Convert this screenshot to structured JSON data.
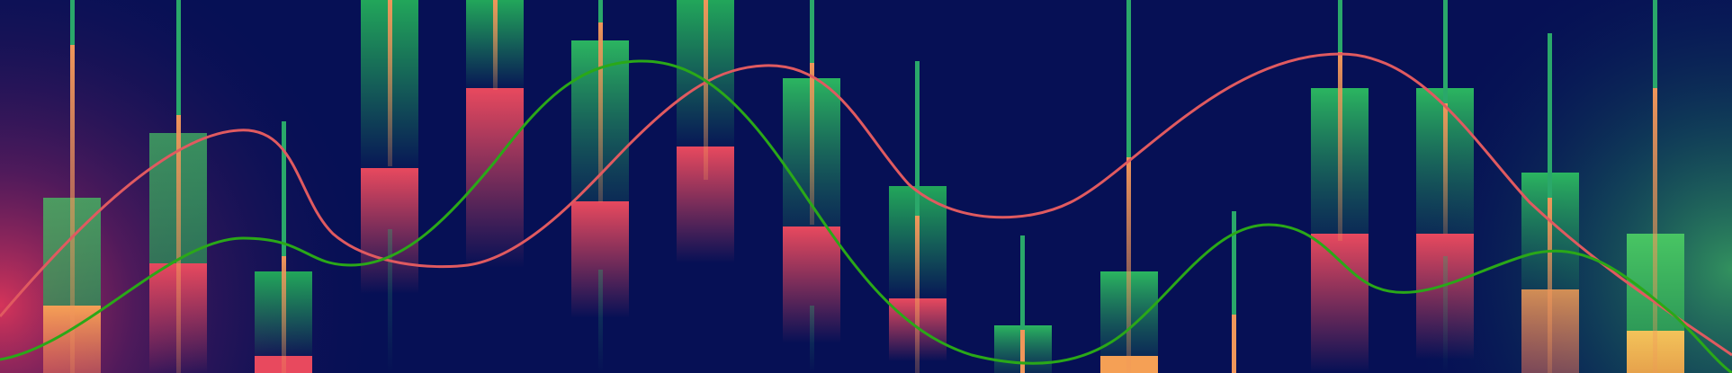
{
  "banner": {
    "background": "#061055",
    "glow_left": "#e0365a",
    "glow_right": "#2a8a5a",
    "candle_colors": {
      "green": "#22a65a",
      "green_light": "#45c060",
      "red": "#e8495e",
      "orange": "#f5a055",
      "wick_green": "#2aa86a",
      "wick_orange": "#f0965a"
    },
    "line_colors": {
      "red_curve": "#e05a60",
      "green_curve": "#2aa818"
    },
    "candles": [
      {
        "id": "c01",
        "upper": "green",
        "lower": "orange",
        "wick": "green"
      },
      {
        "id": "c02",
        "upper": "green",
        "lower": "red",
        "wick": "orange"
      },
      {
        "id": "c03",
        "upper": "green",
        "lower": "red",
        "wick": "green"
      },
      {
        "id": "c04",
        "upper": "green",
        "lower": "red",
        "wick": "orange"
      },
      {
        "id": "c05",
        "upper": "green",
        "lower": "red",
        "wick": "orange"
      },
      {
        "id": "c06",
        "upper": "green",
        "lower": "red",
        "wick": "orange"
      },
      {
        "id": "c07",
        "upper": "green",
        "lower": "red",
        "wick": "orange"
      },
      {
        "id": "c08",
        "upper": "green",
        "lower": "red",
        "wick": "orange"
      },
      {
        "id": "c09",
        "upper": "green",
        "lower": "red",
        "wick": "green"
      },
      {
        "id": "c10",
        "upper": "green",
        "lower": "orange",
        "wick": "green"
      },
      {
        "id": "c11",
        "upper": "green",
        "lower": "orange",
        "wick": "green"
      },
      {
        "id": "c12",
        "upper": "none",
        "lower": "orange",
        "wick": "green"
      },
      {
        "id": "c13",
        "upper": "green",
        "lower": "red",
        "wick": "orange"
      },
      {
        "id": "c14",
        "upper": "green",
        "lower": "red",
        "wick": "orange"
      },
      {
        "id": "c15",
        "upper": "green",
        "lower": "orange",
        "wick": "orange"
      },
      {
        "id": "c16",
        "upper": "green",
        "lower": "yellow",
        "wick": "orange"
      }
    ]
  }
}
